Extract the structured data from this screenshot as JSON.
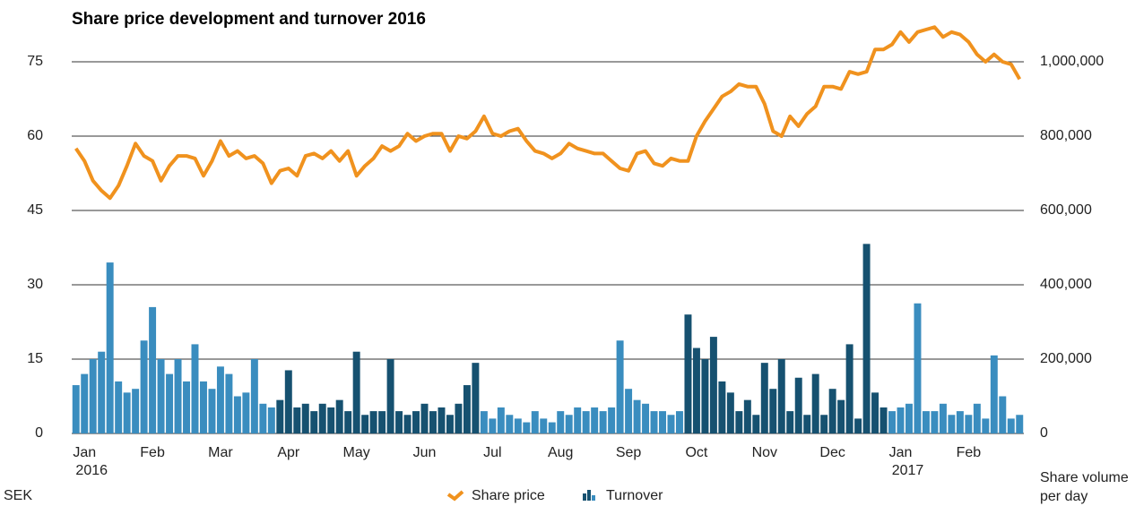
{
  "chart_data": {
    "type": "line+bar",
    "title": "Share price development and turnover 2016",
    "y_label": "SEK",
    "y2_label": [
      "Share volume",
      "per day"
    ],
    "categories": [
      null,
      "Jan",
      null,
      null,
      null,
      null,
      null,
      null,
      null,
      "Feb",
      null,
      null,
      null,
      null,
      null,
      null,
      null,
      "Mar",
      null,
      null,
      null,
      null,
      null,
      null,
      null,
      "Apr",
      null,
      null,
      null,
      null,
      null,
      null,
      null,
      "May",
      null,
      null,
      null,
      null,
      null,
      null,
      null,
      "Jun",
      null,
      null,
      null,
      null,
      null,
      null,
      null,
      "Jul",
      null,
      null,
      null,
      null,
      null,
      null,
      null,
      "Aug",
      null,
      null,
      null,
      null,
      null,
      null,
      null,
      "Sep",
      null,
      null,
      null,
      null,
      null,
      null,
      null,
      "Oct",
      null,
      null,
      null,
      null,
      null,
      null,
      null,
      "Nov",
      null,
      null,
      null,
      null,
      null,
      null,
      null,
      "Dec",
      null,
      null,
      null,
      null,
      null,
      null,
      null,
      "Jan",
      null,
      null,
      null,
      null,
      null,
      null,
      null,
      "Feb",
      null,
      null,
      null,
      null,
      null,
      null
    ],
    "years": [
      null,
      "2016",
      null,
      null,
      null,
      null,
      null,
      null,
      null,
      null,
      null,
      null,
      null,
      null,
      null,
      null,
      null,
      null,
      null,
      null,
      null,
      null,
      null,
      null,
      null,
      null,
      null,
      null,
      null,
      null,
      null,
      null,
      null,
      null,
      null,
      null,
      null,
      null,
      null,
      null,
      null,
      null,
      null,
      null,
      null,
      null,
      null,
      null,
      null,
      null,
      null,
      null,
      null,
      null,
      null,
      null,
      null,
      null,
      null,
      null,
      null,
      null,
      null,
      null,
      null,
      null,
      null,
      null,
      null,
      null,
      null,
      null,
      null,
      null,
      null,
      null,
      null,
      null,
      null,
      null,
      null,
      null,
      null,
      null,
      null,
      null,
      null,
      null,
      null,
      null,
      null,
      null,
      null,
      null,
      null,
      null,
      null,
      "2017",
      null,
      null,
      null,
      null,
      null,
      null,
      null,
      null,
      null,
      null,
      null,
      null,
      null,
      null
    ],
    "series": [
      {
        "name": "Share price",
        "type": "line",
        "color": "#f0921e",
        "values": [
          57.5,
          55,
          51,
          49,
          47.5,
          50,
          54,
          58.5,
          56,
          55,
          51,
          54,
          56,
          56,
          55.5,
          52,
          55,
          59,
          56,
          57,
          55.5,
          56,
          54.5,
          50.5,
          53,
          53.5,
          52,
          56,
          56.5,
          55.5,
          57,
          55,
          57,
          52,
          54,
          55.5,
          58,
          57,
          58,
          60.5,
          59,
          60,
          60.5,
          60.5,
          57,
          60,
          59.5,
          61,
          64,
          60.5,
          60,
          61,
          61.5,
          59,
          57,
          56.5,
          55.5,
          56.5,
          58.5,
          57.5,
          57,
          56.5,
          56.5,
          55,
          53.5,
          53,
          56.5,
          57,
          54.5,
          54,
          55.5,
          55,
          55,
          60,
          63,
          65.5,
          68,
          69,
          70.5,
          70,
          70,
          66.5,
          61,
          60,
          64,
          62,
          64.5,
          66,
          70,
          70,
          69.5,
          73,
          72.5,
          73,
          77.5,
          77.5,
          78.5,
          81,
          79,
          81,
          81.5,
          82,
          80,
          81,
          80.5,
          79,
          76.5,
          75,
          76.5,
          75,
          74.5,
          71.5
        ]
      },
      {
        "name": "Turnover",
        "type": "bar",
        "axis": "y2",
        "colors": [
          "#3a8dbf",
          "#165170"
        ],
        "values": [
          130000,
          160000,
          200000,
          220000,
          460000,
          140000,
          110000,
          120000,
          250000,
          340000,
          200000,
          160000,
          200000,
          140000,
          240000,
          140000,
          120000,
          180000,
          160000,
          100000,
          110000,
          200000,
          80000,
          70000,
          90000,
          170000,
          70000,
          80000,
          60000,
          80000,
          70000,
          90000,
          60000,
          220000,
          50000,
          60000,
          60000,
          200000,
          60000,
          50000,
          60000,
          80000,
          60000,
          70000,
          50000,
          80000,
          130000,
          190000,
          60000,
          40000,
          70000,
          50000,
          40000,
          30000,
          60000,
          40000,
          30000,
          60000,
          50000,
          70000,
          60000,
          70000,
          60000,
          70000,
          250000,
          120000,
          90000,
          80000,
          60000,
          60000,
          50000,
          60000,
          320000,
          230000,
          200000,
          260000,
          140000,
          110000,
          60000,
          90000,
          50000,
          190000,
          120000,
          200000,
          60000,
          150000,
          50000,
          160000,
          50000,
          120000,
          90000,
          240000,
          40000,
          510000,
          110000,
          70000,
          60000,
          70000,
          80000,
          350000,
          60000,
          60000,
          80000,
          50000,
          60000,
          50000,
          80000,
          40000,
          210000,
          100000,
          40000,
          50000
        ]
      }
    ],
    "ylim": [
      0,
      75
    ],
    "yticks": [
      0,
      15,
      30,
      45,
      60,
      75
    ],
    "y2lim": [
      0,
      1000000
    ],
    "y2ticks": [
      0,
      {
        "value": 200000,
        "label": "200,000"
      },
      {
        "value": 400000,
        "label": "400,000"
      },
      {
        "value": 600000,
        "label": "600,000"
      },
      {
        "value": 800000,
        "label": "800,000"
      },
      {
        "value": 1000000,
        "label": "1,000,000"
      }
    ],
    "grid": true,
    "legend": "bottom"
  }
}
